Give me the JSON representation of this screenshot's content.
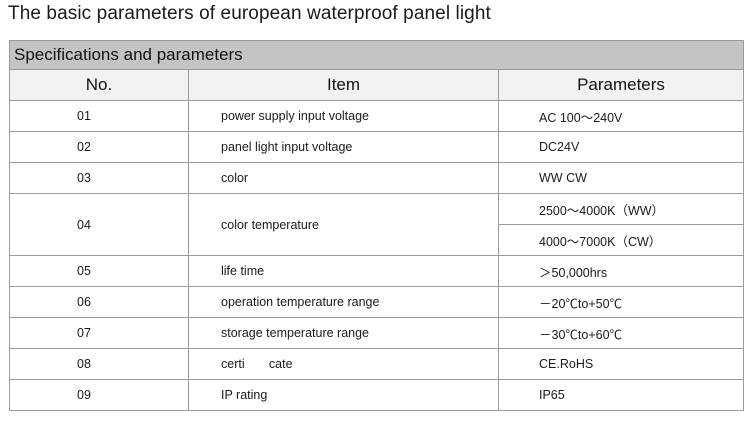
{
  "title": "The basic parameters of european waterproof panel light",
  "table": {
    "caption": "Specifications and parameters",
    "headers": {
      "no": "No.",
      "item": "Item",
      "parameters": "Parameters"
    },
    "rows": [
      {
        "no": "01",
        "item": "power supply input voltage",
        "param": "AC 100～240V"
      },
      {
        "no": "02",
        "item": "panel light input voltage",
        "param": "DC24V"
      },
      {
        "no": "03",
        "item": "color",
        "param": "WW  CW"
      },
      {
        "no": "04",
        "item": "color temperature",
        "param": "2500～4000K（WW）",
        "param2": "4000～7000K（CW）"
      },
      {
        "no": "05",
        "item": "life time",
        "param": "＞50,000hrs"
      },
      {
        "no": "06",
        "item": "operation temperature range",
        "param": "－20℃to+50℃"
      },
      {
        "no": "07",
        "item": "storage temperature range",
        "param": "－30℃to+60℃"
      },
      {
        "no": "08",
        "item": "certi       cate",
        "param": "CE.RoHS"
      },
      {
        "no": "09",
        "item": "IP rating",
        "param": "IP65"
      }
    ]
  }
}
